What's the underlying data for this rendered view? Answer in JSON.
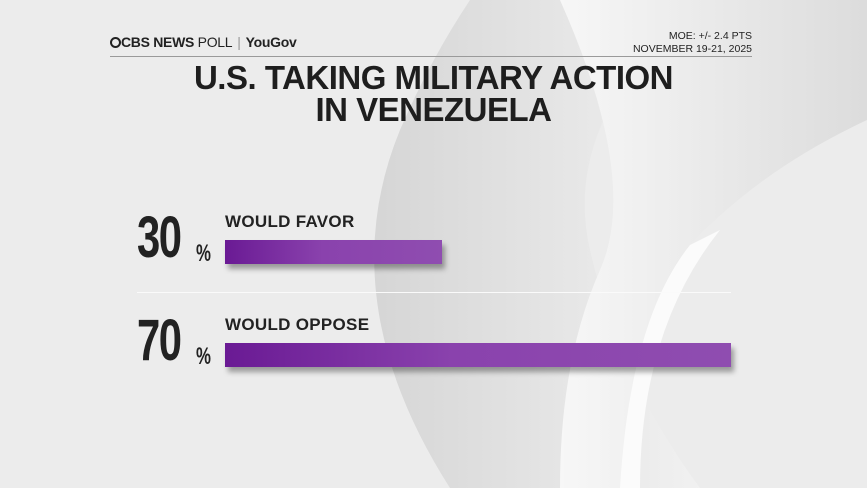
{
  "header": {
    "brand_cbs": "CBS NEWS",
    "brand_poll": "POLL",
    "brand_partner": "YouGov",
    "moe": "MOE: +/- 2.4 PTS",
    "dates": "NOVEMBER 19-21, 2025"
  },
  "chart_data": {
    "type": "bar",
    "orientation": "horizontal",
    "title_lines": [
      "U.S. TAKING MILITARY ACTION",
      "IN VENEZUELA"
    ],
    "categories": [
      "WOULD FAVOR",
      "WOULD OPPOSE"
    ],
    "values": [
      30,
      70
    ],
    "value_labels": [
      "30",
      "70"
    ],
    "unit": "%",
    "xlim": [
      0,
      100
    ],
    "grid": false,
    "bar_color": "#8a42ad",
    "bar_color_start": "#6a1a94"
  }
}
